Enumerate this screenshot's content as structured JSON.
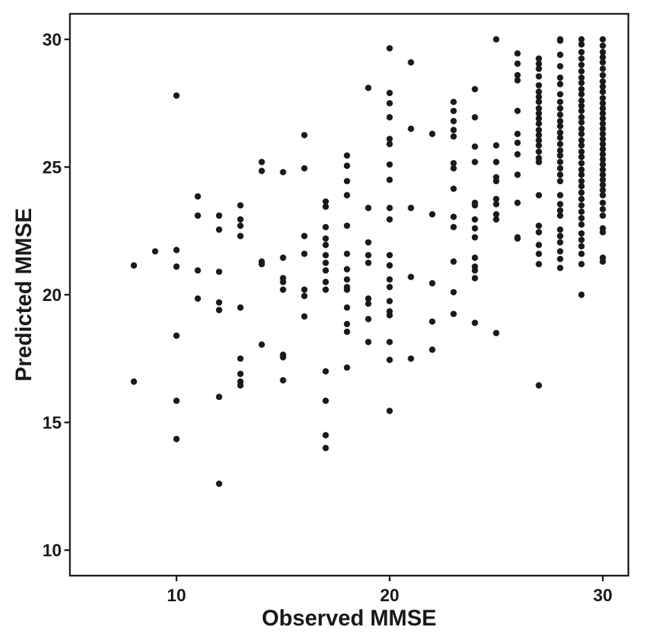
{
  "chart_data": {
    "type": "scatter",
    "title": "",
    "xlabel": "Observed MMSE",
    "ylabel": "Predicted MMSE",
    "xlim": [
      5,
      31.2
    ],
    "ylim": [
      9,
      31
    ],
    "xticks": [
      10,
      20,
      30
    ],
    "yticks": [
      10,
      15,
      20,
      25,
      30
    ],
    "grid": false,
    "legend": "none",
    "point_color": "#1a1a1a",
    "points": [
      [
        8,
        21.15
      ],
      [
        8,
        16.6
      ],
      [
        9,
        21.7
      ],
      [
        10,
        27.8
      ],
      [
        10,
        21.75
      ],
      [
        10,
        21.1
      ],
      [
        10,
        18.4
      ],
      [
        10,
        15.85
      ],
      [
        10,
        14.35
      ],
      [
        11,
        23.85
      ],
      [
        11,
        23.1
      ],
      [
        11,
        20.95
      ],
      [
        11,
        19.85
      ],
      [
        12,
        23.1
      ],
      [
        12,
        22.55
      ],
      [
        12,
        20.9
      ],
      [
        12,
        19.7
      ],
      [
        12,
        19.4
      ],
      [
        12,
        16.0
      ],
      [
        12,
        12.6
      ],
      [
        13,
        23.5
      ],
      [
        13,
        22.95
      ],
      [
        13,
        22.7
      ],
      [
        13,
        22.3
      ],
      [
        13,
        19.5
      ],
      [
        13,
        17.5
      ],
      [
        13,
        16.9
      ],
      [
        13,
        16.6
      ],
      [
        13,
        16.45
      ],
      [
        14,
        25.2
      ],
      [
        14,
        24.85
      ],
      [
        14,
        21.3
      ],
      [
        14,
        21.2
      ],
      [
        14,
        18.05
      ],
      [
        15,
        24.8
      ],
      [
        15,
        21.45
      ],
      [
        15,
        20.65
      ],
      [
        15,
        20.5
      ],
      [
        15,
        20.2
      ],
      [
        15,
        17.65
      ],
      [
        15,
        17.55
      ],
      [
        15,
        16.65
      ],
      [
        16,
        26.25
      ],
      [
        16,
        24.95
      ],
      [
        16,
        22.3
      ],
      [
        16,
        21.6
      ],
      [
        16,
        20.2
      ],
      [
        16,
        19.95
      ],
      [
        16,
        19.15
      ],
      [
        17,
        23.65
      ],
      [
        17,
        23.45
      ],
      [
        17,
        22.65
      ],
      [
        17,
        22.2
      ],
      [
        17,
        21.95
      ],
      [
        17,
        21.55
      ],
      [
        17,
        21.25
      ],
      [
        17,
        20.95
      ],
      [
        17,
        20.5
      ],
      [
        17,
        20.2
      ],
      [
        17,
        17.0
      ],
      [
        17,
        15.85
      ],
      [
        17,
        14.5
      ],
      [
        17,
        14.0
      ],
      [
        18,
        25.45
      ],
      [
        18,
        25.05
      ],
      [
        18,
        24.45
      ],
      [
        18,
        23.9
      ],
      [
        18,
        22.7
      ],
      [
        18,
        21.6
      ],
      [
        18,
        21.0
      ],
      [
        18,
        20.6
      ],
      [
        18,
        20.3
      ],
      [
        18,
        20.2
      ],
      [
        18,
        19.5
      ],
      [
        18,
        18.85
      ],
      [
        18,
        18.55
      ],
      [
        18,
        17.15
      ],
      [
        19,
        28.1
      ],
      [
        19,
        23.4
      ],
      [
        19,
        22.05
      ],
      [
        19,
        21.55
      ],
      [
        19,
        21.25
      ],
      [
        19,
        19.85
      ],
      [
        19,
        19.65
      ],
      [
        19,
        19.05
      ],
      [
        19,
        18.15
      ],
      [
        20,
        29.65
      ],
      [
        20,
        27.9
      ],
      [
        20,
        27.5
      ],
      [
        20,
        26.95
      ],
      [
        20,
        26.1
      ],
      [
        20,
        25.9
      ],
      [
        20,
        25.1
      ],
      [
        20,
        24.5
      ],
      [
        20,
        23.4
      ],
      [
        20,
        22.95
      ],
      [
        20,
        21.55
      ],
      [
        20,
        21.15
      ],
      [
        20,
        20.6
      ],
      [
        20,
        20.3
      ],
      [
        20,
        19.75
      ],
      [
        20,
        19.35
      ],
      [
        20,
        19.2
      ],
      [
        20,
        18.15
      ],
      [
        20,
        17.45
      ],
      [
        20,
        15.45
      ],
      [
        21,
        29.1
      ],
      [
        21,
        26.5
      ],
      [
        21,
        23.4
      ],
      [
        21,
        20.7
      ],
      [
        21,
        17.5
      ],
      [
        22,
        26.3
      ],
      [
        22,
        23.15
      ],
      [
        22,
        20.45
      ],
      [
        22,
        18.95
      ],
      [
        22,
        17.85
      ],
      [
        23,
        27.55
      ],
      [
        23,
        27.2
      ],
      [
        23,
        26.8
      ],
      [
        23,
        26.45
      ],
      [
        23,
        26.2
      ],
      [
        23,
        25.15
      ],
      [
        23,
        24.95
      ],
      [
        23,
        24.15
      ],
      [
        23,
        23.05
      ],
      [
        23,
        22.65
      ],
      [
        23,
        21.3
      ],
      [
        23,
        20.1
      ],
      [
        23,
        19.25
      ],
      [
        24,
        28.05
      ],
      [
        24,
        26.95
      ],
      [
        24,
        25.8
      ],
      [
        24,
        25.2
      ],
      [
        24,
        23.6
      ],
      [
        24,
        23.5
      ],
      [
        24,
        22.95
      ],
      [
        24,
        22.6
      ],
      [
        24,
        22.25
      ],
      [
        24,
        21.45
      ],
      [
        24,
        21.1
      ],
      [
        24,
        20.95
      ],
      [
        24,
        20.65
      ],
      [
        24,
        18.9
      ],
      [
        25,
        30.0
      ],
      [
        25,
        25.85
      ],
      [
        25,
        25.2
      ],
      [
        25,
        24.6
      ],
      [
        25,
        24.45
      ],
      [
        25,
        23.75
      ],
      [
        25,
        23.55
      ],
      [
        25,
        23.15
      ],
      [
        25,
        22.95
      ],
      [
        25,
        18.5
      ],
      [
        26,
        29.45
      ],
      [
        26,
        29.05
      ],
      [
        26,
        28.6
      ],
      [
        26,
        28.4
      ],
      [
        26,
        27.2
      ],
      [
        26,
        26.3
      ],
      [
        26,
        25.95
      ],
      [
        26,
        25.5
      ],
      [
        26,
        24.7
      ],
      [
        26,
        23.6
      ],
      [
        26,
        22.25
      ],
      [
        26,
        22.2
      ],
      [
        27,
        29.25
      ],
      [
        27,
        29.05
      ],
      [
        27,
        28.85
      ],
      [
        27,
        28.55
      ],
      [
        27,
        28.2
      ],
      [
        27,
        27.95
      ],
      [
        27,
        27.75
      ],
      [
        27,
        27.55
      ],
      [
        27,
        27.3
      ],
      [
        27,
        27.1
      ],
      [
        27,
        26.9
      ],
      [
        27,
        26.7
      ],
      [
        27,
        26.45
      ],
      [
        27,
        26.25
      ],
      [
        27,
        26.05
      ],
      [
        27,
        25.85
      ],
      [
        27,
        25.6
      ],
      [
        27,
        25.35
      ],
      [
        27,
        25.2
      ],
      [
        27,
        23.9
      ],
      [
        27,
        22.7
      ],
      [
        27,
        22.45
      ],
      [
        27,
        21.95
      ],
      [
        27,
        21.6
      ],
      [
        27,
        21.2
      ],
      [
        27,
        16.45
      ],
      [
        28,
        30.0
      ],
      [
        28,
        29.95
      ],
      [
        28,
        29.4
      ],
      [
        28,
        28.95
      ],
      [
        28,
        28.5
      ],
      [
        28,
        28.25
      ],
      [
        28,
        27.85
      ],
      [
        28,
        27.55
      ],
      [
        28,
        27.3
      ],
      [
        28,
        27.05
      ],
      [
        28,
        26.8
      ],
      [
        28,
        26.6
      ],
      [
        28,
        26.35
      ],
      [
        28,
        26.15
      ],
      [
        28,
        25.9
      ],
      [
        28,
        25.65
      ],
      [
        28,
        25.45
      ],
      [
        28,
        25.2
      ],
      [
        28,
        24.95
      ],
      [
        28,
        24.7
      ],
      [
        28,
        24.45
      ],
      [
        28,
        23.9
      ],
      [
        28,
        23.55
      ],
      [
        28,
        23.3
      ],
      [
        28,
        23.1
      ],
      [
        28,
        22.55
      ],
      [
        28,
        22.3
      ],
      [
        28,
        22.05
      ],
      [
        28,
        21.7
      ],
      [
        28,
        21.4
      ],
      [
        28,
        21.05
      ],
      [
        29,
        30.0
      ],
      [
        29,
        29.8
      ],
      [
        29,
        29.5
      ],
      [
        29,
        29.25
      ],
      [
        29,
        29.0
      ],
      [
        29,
        28.75
      ],
      [
        29,
        28.5
      ],
      [
        29,
        28.3
      ],
      [
        29,
        28.05
      ],
      [
        29,
        27.85
      ],
      [
        29,
        27.6
      ],
      [
        29,
        27.4
      ],
      [
        29,
        27.2
      ],
      [
        29,
        26.95
      ],
      [
        29,
        26.75
      ],
      [
        29,
        26.5
      ],
      [
        29,
        26.3
      ],
      [
        29,
        26.05
      ],
      [
        29,
        25.85
      ],
      [
        29,
        25.6
      ],
      [
        29,
        25.4
      ],
      [
        29,
        25.15
      ],
      [
        29,
        24.9
      ],
      [
        29,
        24.7
      ],
      [
        29,
        24.45
      ],
      [
        29,
        24.25
      ],
      [
        29,
        24.0
      ],
      [
        29,
        23.75
      ],
      [
        29,
        23.5
      ],
      [
        29,
        23.25
      ],
      [
        29,
        23.0
      ],
      [
        29,
        22.75
      ],
      [
        29,
        22.4
      ],
      [
        29,
        22.15
      ],
      [
        29,
        21.9
      ],
      [
        29,
        21.6
      ],
      [
        29,
        21.2
      ],
      [
        29,
        20.0
      ],
      [
        30,
        30.0
      ],
      [
        30,
        29.75
      ],
      [
        30,
        29.5
      ],
      [
        30,
        29.3
      ],
      [
        30,
        29.1
      ],
      [
        30,
        28.85
      ],
      [
        30,
        28.6
      ],
      [
        30,
        28.35
      ],
      [
        30,
        28.15
      ],
      [
        30,
        27.95
      ],
      [
        30,
        27.7
      ],
      [
        30,
        27.5
      ],
      [
        30,
        27.3
      ],
      [
        30,
        27.1
      ],
      [
        30,
        26.9
      ],
      [
        30,
        26.7
      ],
      [
        30,
        26.5
      ],
      [
        30,
        26.3
      ],
      [
        30,
        26.1
      ],
      [
        30,
        25.9
      ],
      [
        30,
        25.7
      ],
      [
        30,
        25.5
      ],
      [
        30,
        25.3
      ],
      [
        30,
        25.1
      ],
      [
        30,
        24.9
      ],
      [
        30,
        24.7
      ],
      [
        30,
        24.5
      ],
      [
        30,
        24.3
      ],
      [
        30,
        24.1
      ],
      [
        30,
        23.9
      ],
      [
        30,
        23.6
      ],
      [
        30,
        23.35
      ],
      [
        30,
        23.1
      ],
      [
        30,
        22.6
      ],
      [
        30,
        22.45
      ],
      [
        30,
        21.45
      ],
      [
        30,
        21.3
      ]
    ]
  }
}
